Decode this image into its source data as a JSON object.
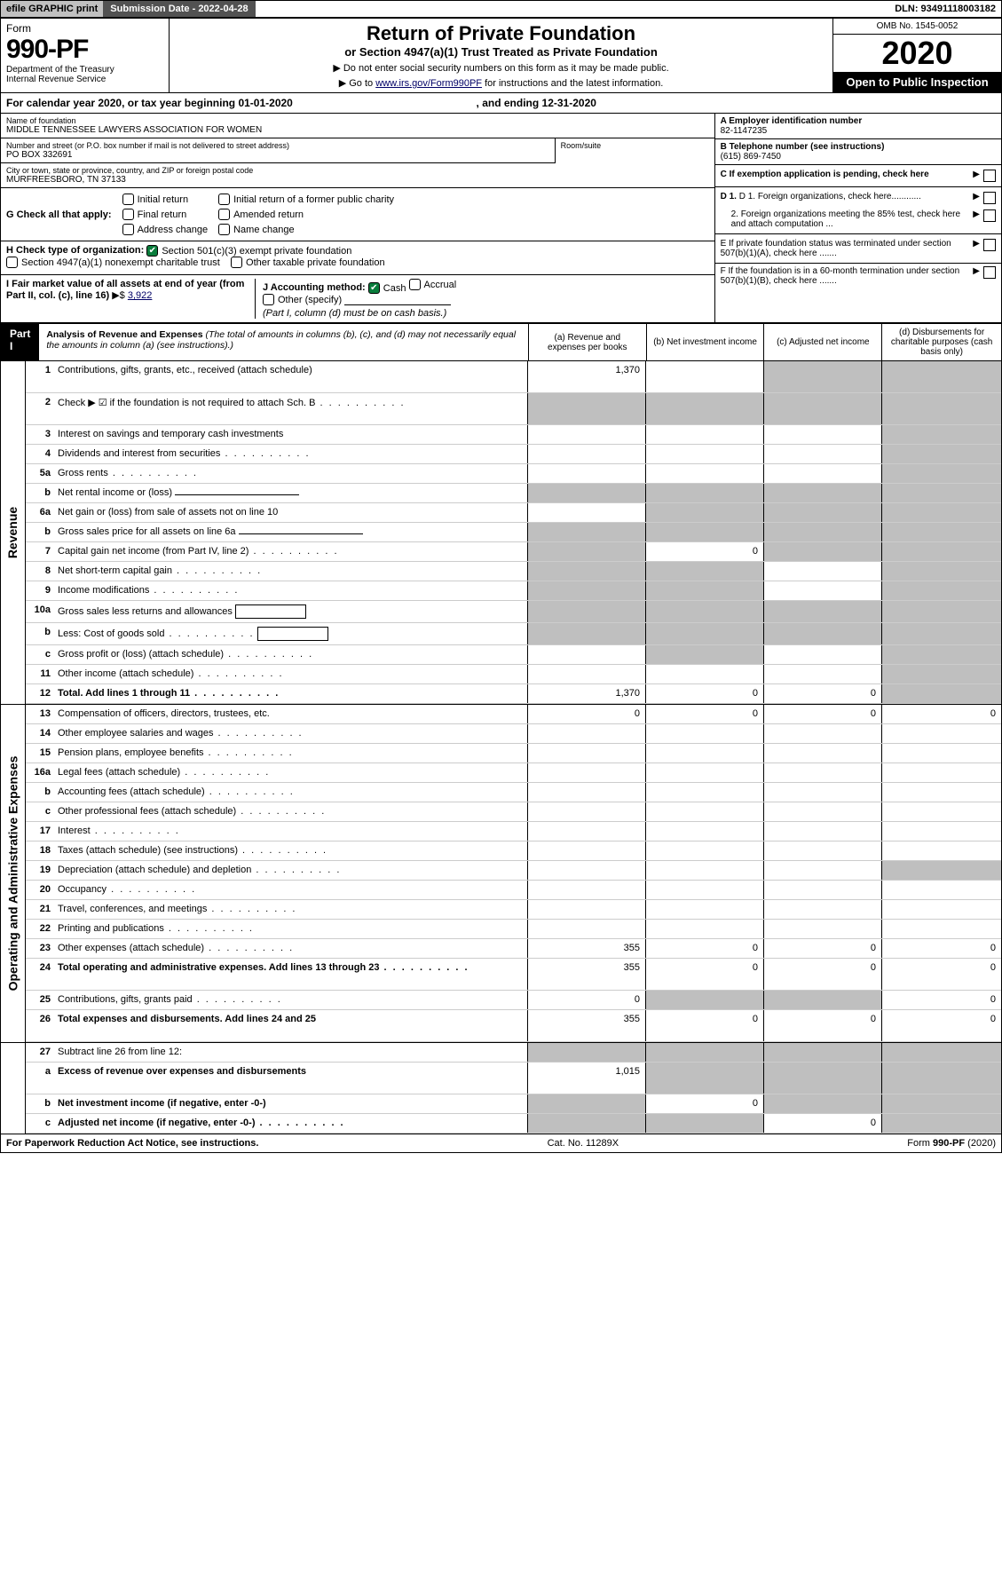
{
  "topbar": {
    "efile": "efile GRAPHIC print",
    "submission_label": "Submission Date - 2022-04-28",
    "dln": "DLN: 93491118003182"
  },
  "header": {
    "form_label": "Form",
    "form_number": "990-PF",
    "dept1": "Department of the Treasury",
    "dept2": "Internal Revenue Service",
    "title": "Return of Private Foundation",
    "subtitle": "or Section 4947(a)(1) Trust Treated as Private Foundation",
    "note1": "▶ Do not enter social security numbers on this form as it may be made public.",
    "note2_pre": "▶ Go to ",
    "note2_link": "www.irs.gov/Form990PF",
    "note2_post": " for instructions and the latest information.",
    "omb": "OMB No. 1545-0052",
    "year": "2020",
    "open": "Open to Public Inspection"
  },
  "cal_year": {
    "text_pre": "For calendar year 2020, or tax year beginning ",
    "begin": "01-01-2020",
    "text_mid": " , and ending ",
    "end": "12-31-2020"
  },
  "entity": {
    "name_label": "Name of foundation",
    "name": "MIDDLE TENNESSEE LAWYERS ASSOCIATION FOR WOMEN",
    "addr_label": "Number and street (or P.O. box number if mail is not delivered to street address)",
    "addr": "PO BOX 332691",
    "room_label": "Room/suite",
    "city_label": "City or town, state or province, country, and ZIP or foreign postal code",
    "city": "MURFREESBORO, TN  37133",
    "ein_label": "A Employer identification number",
    "ein": "82-1147235",
    "phone_label": "B Telephone number (see instructions)",
    "phone": "(615) 869-7450",
    "c_label": "C If exemption application is pending, check here",
    "d1": "D 1. Foreign organizations, check here............",
    "d2": "2. Foreign organizations meeting the 85% test, check here and attach computation ...",
    "e_label": "E  If private foundation status was terminated under section 507(b)(1)(A), check here .......",
    "f_label": "F  If the foundation is in a 60-month termination under section 507(b)(1)(B), check here ......."
  },
  "g": {
    "label": "G Check all that apply:",
    "initial": "Initial return",
    "initial_former": "Initial return of a former public charity",
    "final": "Final return",
    "amended": "Amended return",
    "addr_change": "Address change",
    "name_change": "Name change"
  },
  "h": {
    "label": "H Check type of organization:",
    "501c3": "Section 501(c)(3) exempt private foundation",
    "4947": "Section 4947(a)(1) nonexempt charitable trust",
    "other_taxable": "Other taxable private foundation"
  },
  "i": {
    "label": "I Fair market value of all assets at end of year (from Part II, col. (c), line 16)",
    "arrow": "▶$",
    "value": "3,922"
  },
  "j": {
    "label": "J Accounting method:",
    "cash": "Cash",
    "accrual": "Accrual",
    "other": "Other (specify)",
    "note": "(Part I, column (d) must be on cash basis.)"
  },
  "part1": {
    "label": "Part I",
    "title": "Analysis of Revenue and Expenses",
    "title_note": "(The total of amounts in columns (b), (c), and (d) may not necessarily equal the amounts in column (a) (see instructions).)",
    "col_a": "(a) Revenue and expenses per books",
    "col_b": "(b) Net investment income",
    "col_c": "(c) Adjusted net income",
    "col_d": "(d) Disbursements for charitable purposes (cash basis only)"
  },
  "side_labels": {
    "revenue": "Revenue",
    "expenses": "Operating and Administrative Expenses"
  },
  "rows": [
    {
      "n": "1",
      "d": "Contributions, gifts, grants, etc., received (attach schedule)",
      "a": "1,370",
      "tall": true,
      "gb": false,
      "gc": true,
      "gd": true
    },
    {
      "n": "2",
      "d": "Check ▶ ☑ if the foundation is not required to attach Sch. B",
      "tall": true,
      "ga": true,
      "gb": true,
      "gc": true,
      "gd": true,
      "bold": false,
      "dots": true
    },
    {
      "n": "3",
      "d": "Interest on savings and temporary cash investments",
      "gd": true
    },
    {
      "n": "4",
      "d": "Dividends and interest from securities",
      "dots": true,
      "gd": true
    },
    {
      "n": "5a",
      "d": "Gross rents",
      "dots": true,
      "gd": true
    },
    {
      "n": "b",
      "d": "Net rental income or (loss)",
      "inline": true,
      "ga": true,
      "gb": true,
      "gc": true,
      "gd": true
    },
    {
      "n": "6a",
      "d": "Net gain or (loss) from sale of assets not on line 10",
      "gb": true,
      "gc": true,
      "gd": true
    },
    {
      "n": "b",
      "d": "Gross sales price for all assets on line 6a",
      "inline": true,
      "ga": true,
      "gb": true,
      "gc": true,
      "gd": true
    },
    {
      "n": "7",
      "d": "Capital gain net income (from Part IV, line 2)",
      "dots": true,
      "b": "0",
      "ga": true,
      "gc": true,
      "gd": true
    },
    {
      "n": "8",
      "d": "Net short-term capital gain",
      "dots": true,
      "ga": true,
      "gb": true,
      "gd": true
    },
    {
      "n": "9",
      "d": "Income modifications",
      "dots": true,
      "ga": true,
      "gb": true,
      "gd": true
    },
    {
      "n": "10a",
      "d": "Gross sales less returns and allowances",
      "inline_box": true,
      "ga": true,
      "gb": true,
      "gc": true,
      "gd": true
    },
    {
      "n": "b",
      "d": "Less: Cost of goods sold",
      "dots": true,
      "inline_box": true,
      "ga": true,
      "gb": true,
      "gc": true,
      "gd": true
    },
    {
      "n": "c",
      "d": "Gross profit or (loss) (attach schedule)",
      "dots": true,
      "gb": true,
      "gd": true
    },
    {
      "n": "11",
      "d": "Other income (attach schedule)",
      "dots": true,
      "gd": true
    },
    {
      "n": "12",
      "d": "Total. Add lines 1 through 11",
      "bold": true,
      "dots": true,
      "a": "1,370",
      "b": "0",
      "c": "0",
      "gd": true
    }
  ],
  "exp_rows": [
    {
      "n": "13",
      "d": "Compensation of officers, directors, trustees, etc.",
      "a": "0",
      "b": "0",
      "c": "0",
      "dd": "0"
    },
    {
      "n": "14",
      "d": "Other employee salaries and wages",
      "dots": true
    },
    {
      "n": "15",
      "d": "Pension plans, employee benefits",
      "dots": true
    },
    {
      "n": "16a",
      "d": "Legal fees (attach schedule)",
      "dots": true
    },
    {
      "n": "b",
      "d": "Accounting fees (attach schedule)",
      "dots": true
    },
    {
      "n": "c",
      "d": "Other professional fees (attach schedule)",
      "dots": true
    },
    {
      "n": "17",
      "d": "Interest",
      "dots": true
    },
    {
      "n": "18",
      "d": "Taxes (attach schedule) (see instructions)",
      "dots": true
    },
    {
      "n": "19",
      "d": "Depreciation (attach schedule) and depletion",
      "dots": true,
      "gd": true
    },
    {
      "n": "20",
      "d": "Occupancy",
      "dots": true
    },
    {
      "n": "21",
      "d": "Travel, conferences, and meetings",
      "dots": true
    },
    {
      "n": "22",
      "d": "Printing and publications",
      "dots": true
    },
    {
      "n": "23",
      "d": "Other expenses (attach schedule)",
      "dots": true,
      "a": "355",
      "b": "0",
      "c": "0",
      "dd": "0"
    },
    {
      "n": "24",
      "d": "Total operating and administrative expenses. Add lines 13 through 23",
      "bold": true,
      "dots": true,
      "tall": true,
      "a": "355",
      "b": "0",
      "c": "0",
      "dd": "0"
    },
    {
      "n": "25",
      "d": "Contributions, gifts, grants paid",
      "dots": true,
      "a": "0",
      "gb": true,
      "gc": true,
      "dd": "0"
    },
    {
      "n": "26",
      "d": "Total expenses and disbursements. Add lines 24 and 25",
      "bold": true,
      "tall": true,
      "a": "355",
      "b": "0",
      "c": "0",
      "dd": "0"
    }
  ],
  "net_rows": [
    {
      "n": "27",
      "d": "Subtract line 26 from line 12:",
      "ga": true,
      "gb": true,
      "gc": true,
      "gd": true
    },
    {
      "n": "a",
      "d": "Excess of revenue over expenses and disbursements",
      "bold": true,
      "tall": true,
      "a": "1,015",
      "gb": true,
      "gc": true,
      "gd": true
    },
    {
      "n": "b",
      "d": "Net investment income (if negative, enter -0-)",
      "bold": true,
      "ga": true,
      "b": "0",
      "gc": true,
      "gd": true
    },
    {
      "n": "c",
      "d": "Adjusted net income (if negative, enter -0-)",
      "bold": true,
      "dots": true,
      "ga": true,
      "gb": true,
      "c": "0",
      "gd": true
    }
  ],
  "footer": {
    "left": "For Paperwork Reduction Act Notice, see instructions.",
    "mid": "Cat. No. 11289X",
    "right": "Form 990-PF (2020)"
  }
}
